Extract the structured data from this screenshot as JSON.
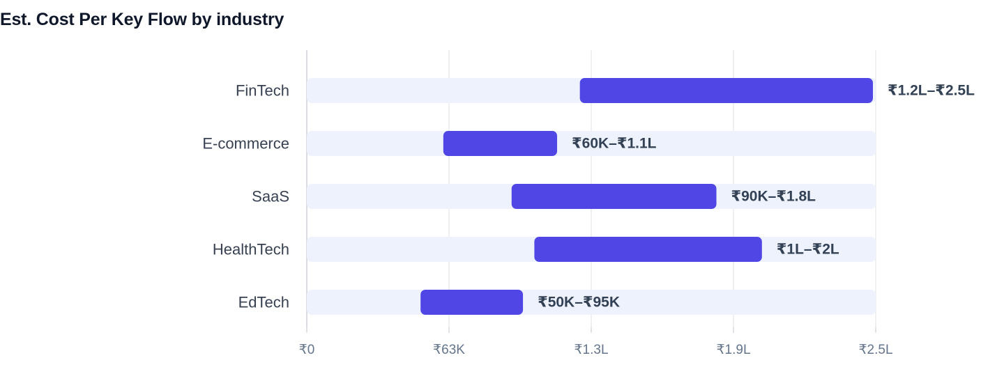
{
  "chart_data": {
    "type": "bar",
    "orientation": "horizontal",
    "subtype": "range",
    "title": "Est. Cost Per Key Flow by industry",
    "xlabel": "",
    "ylabel": "",
    "categories": [
      "FinTech",
      "E-commerce",
      "SaaS",
      "HealthTech",
      "EdTech"
    ],
    "series": [
      {
        "low": [
          120000,
          60000,
          90000,
          100000,
          50000
        ],
        "high": [
          250000,
          110000,
          180000,
          200000,
          95000
        ],
        "labels": [
          "₹1.2L–₹2.5L",
          "₹60K–₹1.1L",
          "₹90K–₹1.8L",
          "₹1L–₹2L",
          "₹50K–₹95K"
        ]
      }
    ],
    "xlim": [
      0,
      250000
    ],
    "xticks": [
      0,
      62500,
      125000,
      187500,
      250000
    ],
    "xtick_labels": [
      "₹0",
      "₹63K",
      "₹1.3L",
      "₹1.9L",
      "₹2.5L"
    ],
    "grid": true,
    "legend": "none",
    "colors": {
      "bar": "#4f46e5",
      "track": "#eef2fd",
      "grid": "#e2e5ea"
    }
  }
}
